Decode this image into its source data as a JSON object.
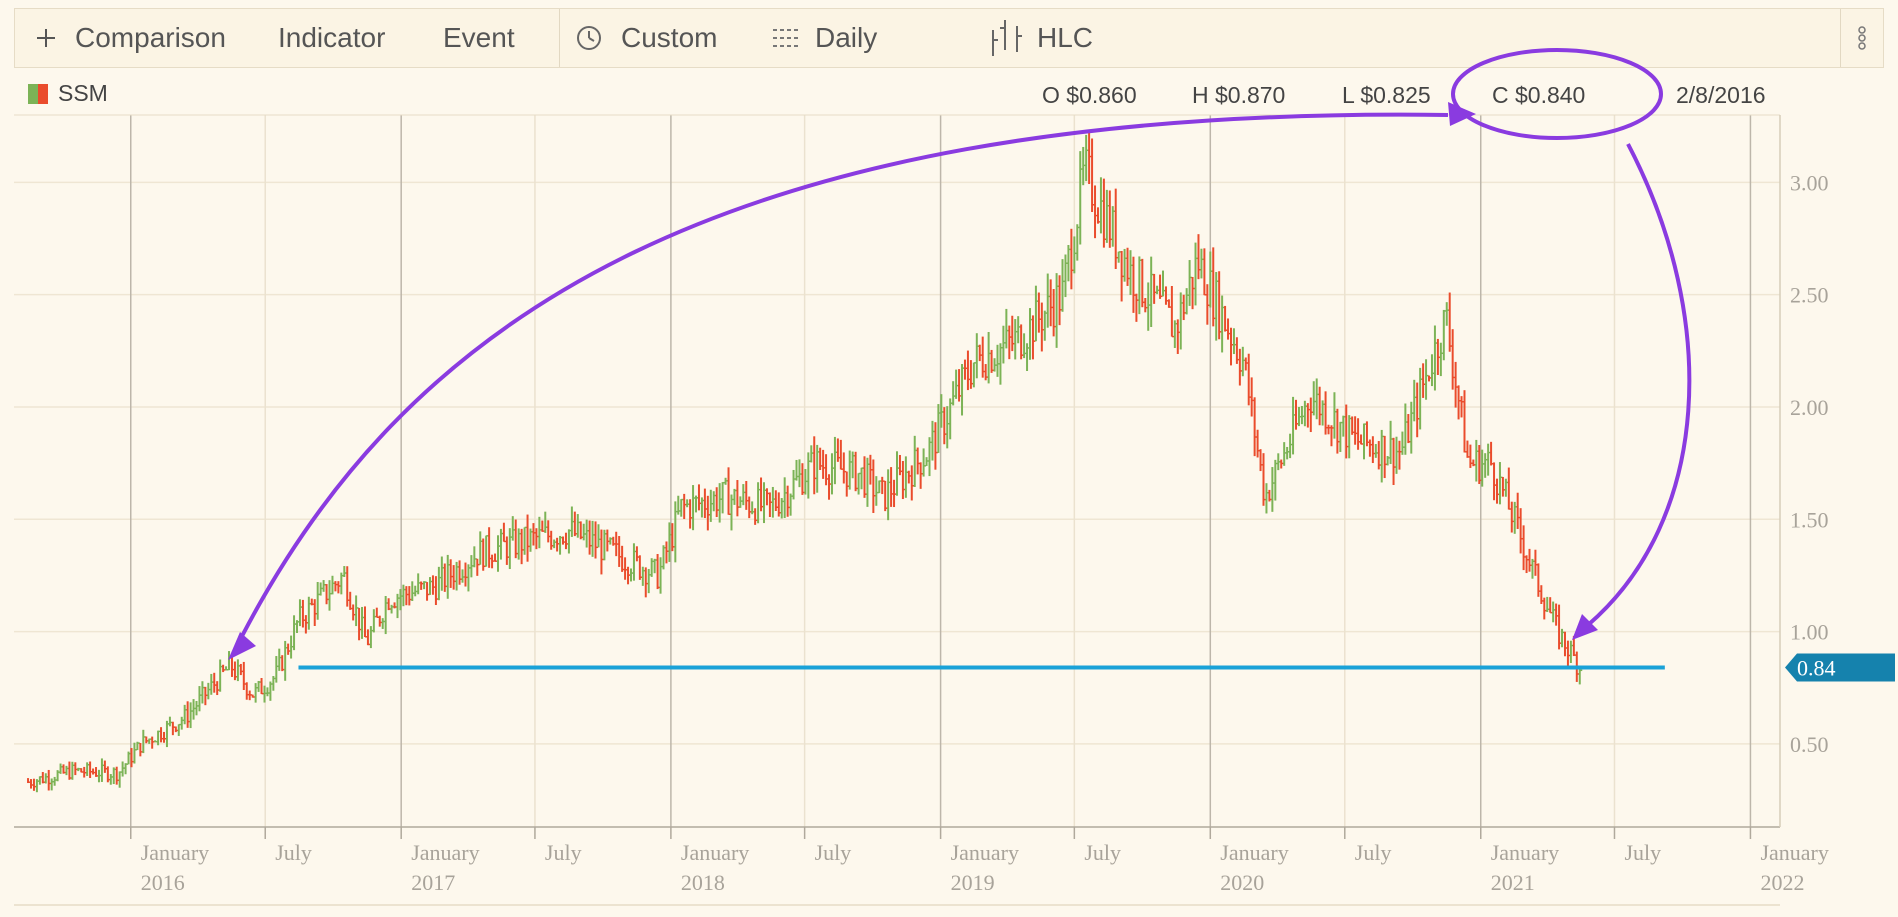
{
  "toolbar": {
    "comparison": "Comparison",
    "indicator": "Indicator",
    "event": "Event",
    "custom": "Custom",
    "daily": "Daily",
    "hlc": "HLC",
    "icons": [
      "plus-icon",
      "clock-icon",
      "interval-icon",
      "hlc-icon",
      "kebab-menu-icon"
    ]
  },
  "legend": {
    "symbol": "SSM",
    "colors": [
      "#7cb356",
      "#ea4c2c"
    ]
  },
  "ohlc": {
    "open": "O $0.860",
    "high": "H $0.870",
    "low": "L $0.825",
    "close": "C $0.840",
    "date": "2/8/2016"
  },
  "colors": {
    "up": "#7cb356",
    "down": "#ea4c2c",
    "annotation": "#8a3be0",
    "hline": "#1aa2d8",
    "price_tag": "#1582ad"
  },
  "chart_data": {
    "type": "line",
    "series": [
      {
        "name": "SSM",
        "x": [
          "2015-08",
          "2015-10",
          "2015-12",
          "2016-01",
          "2016-03",
          "2016-05",
          "2016-06",
          "2016-07",
          "2016-08",
          "2016-10",
          "2016-11",
          "2016-12",
          "2017-02",
          "2017-04",
          "2017-06",
          "2017-08",
          "2017-10",
          "2017-12",
          "2018-01",
          "2018-03",
          "2018-05",
          "2018-07",
          "2018-09",
          "2018-10",
          "2018-12",
          "2019-02",
          "2019-04",
          "2019-06",
          "2019-07",
          "2019-09",
          "2019-11",
          "2019-12",
          "2020-02",
          "2020-03",
          "2020-05",
          "2020-07",
          "2020-09",
          "2020-11",
          "2020-12",
          "2021-01",
          "2021-02",
          "2021-03",
          "2021-04",
          "2021-05"
        ],
        "y": [
          0.33,
          0.38,
          0.37,
          0.5,
          0.62,
          0.85,
          0.72,
          0.8,
          1.05,
          1.25,
          0.95,
          1.15,
          1.2,
          1.35,
          1.4,
          1.45,
          1.35,
          1.25,
          1.55,
          1.6,
          1.55,
          1.75,
          1.7,
          1.6,
          1.8,
          2.2,
          2.3,
          2.5,
          3.05,
          2.6,
          2.35,
          2.65,
          2.2,
          1.6,
          2.05,
          1.85,
          1.8,
          2.4,
          1.75,
          1.75,
          1.5,
          1.25,
          1.0,
          0.84
        ]
      }
    ],
    "x_ticks": [
      {
        "month": "January",
        "year": "2016"
      },
      {
        "month": "July",
        "year": ""
      },
      {
        "month": "January",
        "year": "2017"
      },
      {
        "month": "July",
        "year": ""
      },
      {
        "month": "January",
        "year": "2018"
      },
      {
        "month": "July",
        "year": ""
      },
      {
        "month": "January",
        "year": "2019"
      },
      {
        "month": "July",
        "year": ""
      },
      {
        "month": "January",
        "year": "2020"
      },
      {
        "month": "July",
        "year": ""
      },
      {
        "month": "January",
        "year": "2021"
      },
      {
        "month": "July",
        "year": ""
      },
      {
        "month": "January",
        "year": "2022"
      }
    ],
    "y_ticks": [
      "0.50",
      "1.00",
      "1.50",
      "2.00",
      "2.50",
      "3.00"
    ],
    "ylim": [
      0.13,
      3.3
    ],
    "xlim": [
      "2015-07-27",
      "2022-02-10"
    ],
    "horizontal_line": {
      "value": 0.84,
      "label": "0.84",
      "from": "2016-08",
      "to": "2021-07"
    },
    "grid": true
  }
}
